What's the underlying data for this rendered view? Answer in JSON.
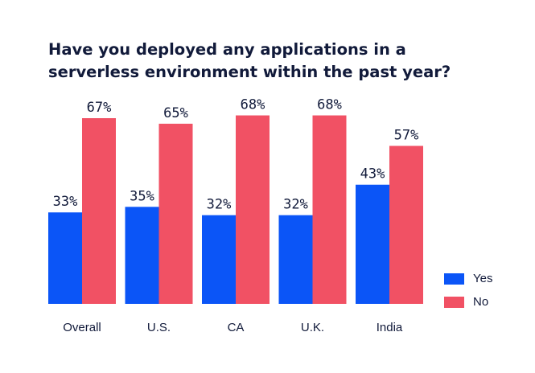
{
  "chart_data": {
    "type": "bar",
    "title": "Have you deployed any applications in a serverless environment within the past year?",
    "categories": [
      "Overall",
      "U.S.",
      "CA",
      "U.K.",
      "India"
    ],
    "series": [
      {
        "name": "Yes",
        "color": "#0b55f7",
        "values": [
          33,
          35,
          32,
          32,
          43
        ],
        "labels": [
          "33%",
          "35%",
          "32%",
          "32%",
          "43%"
        ]
      },
      {
        "name": "No",
        "color": "#f15164",
        "values": [
          67,
          65,
          68,
          68,
          57
        ],
        "labels": [
          "67%",
          "65%",
          "68%",
          "68%",
          "57%"
        ]
      }
    ],
    "ylim": [
      0,
      100
    ],
    "grid": false,
    "legend_position": "bottom-right"
  }
}
